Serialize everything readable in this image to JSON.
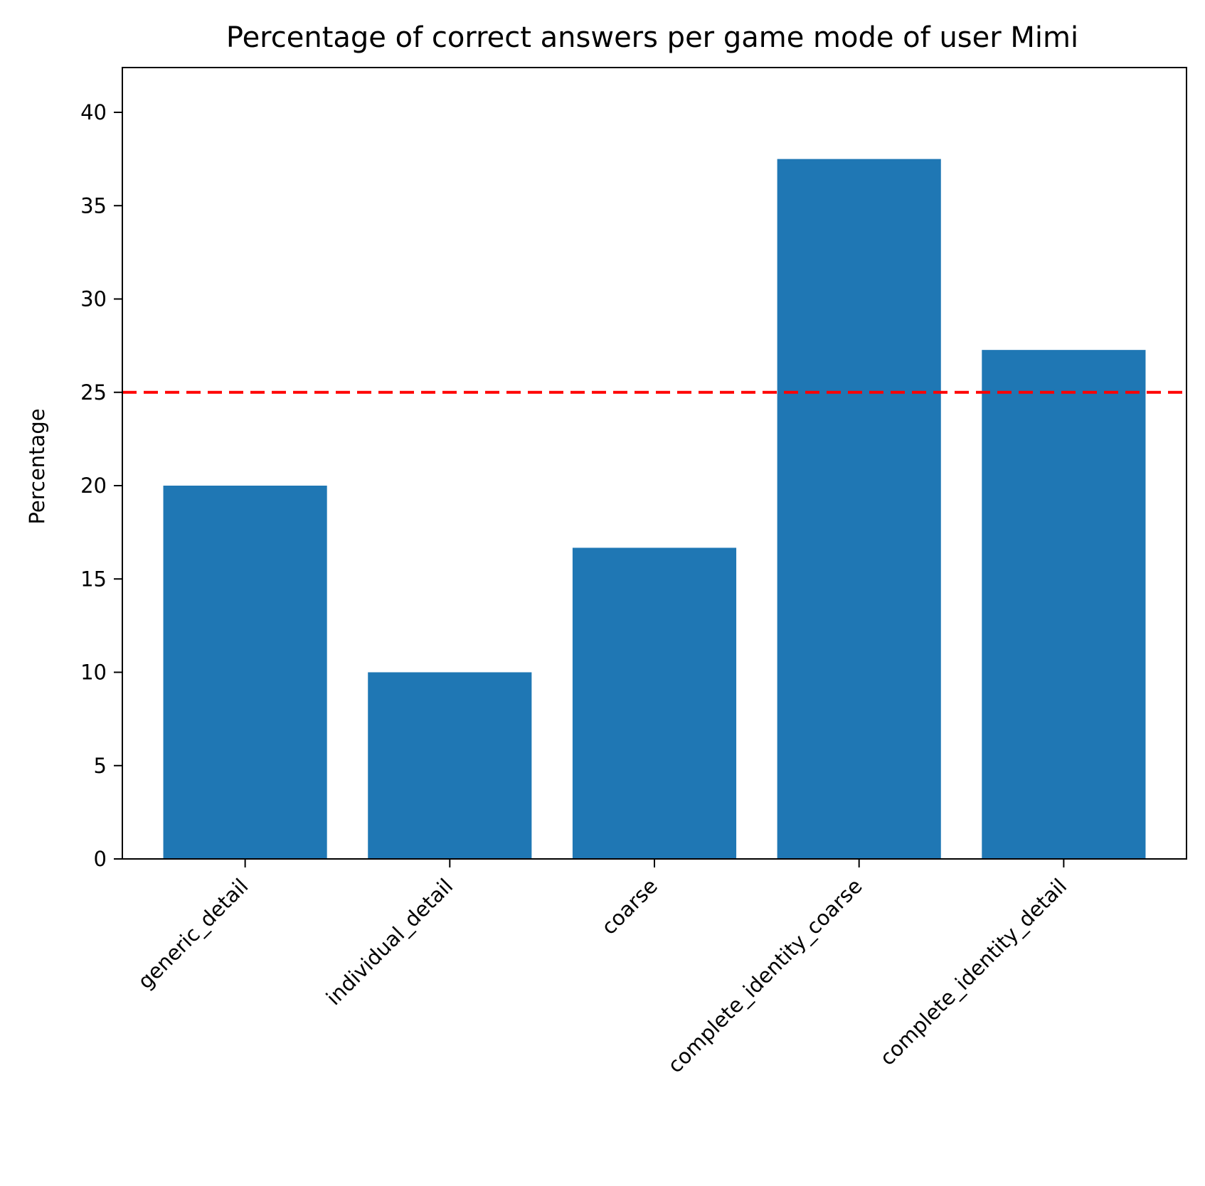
{
  "chart_data": {
    "type": "bar",
    "title": "Percentage of correct answers per game mode of user Mimi",
    "xlabel": "",
    "ylabel": "Percentage",
    "categories": [
      "generic_detail",
      "individual_detail",
      "coarse",
      "complete_identity_coarse",
      "complete_identity_detail"
    ],
    "values": [
      20.0,
      10.0,
      16.67,
      37.5,
      27.27
    ],
    "ylim": [
      0,
      42.4
    ],
    "yticks": [
      0,
      5,
      10,
      15,
      20,
      25,
      30,
      35,
      40
    ],
    "reference_line": {
      "y": 25,
      "style": "dashed"
    },
    "grid": false,
    "legend": "none",
    "colors": {
      "bar": "#1f77b4",
      "reference_line": "#ff0000",
      "axis": "#000000"
    }
  }
}
